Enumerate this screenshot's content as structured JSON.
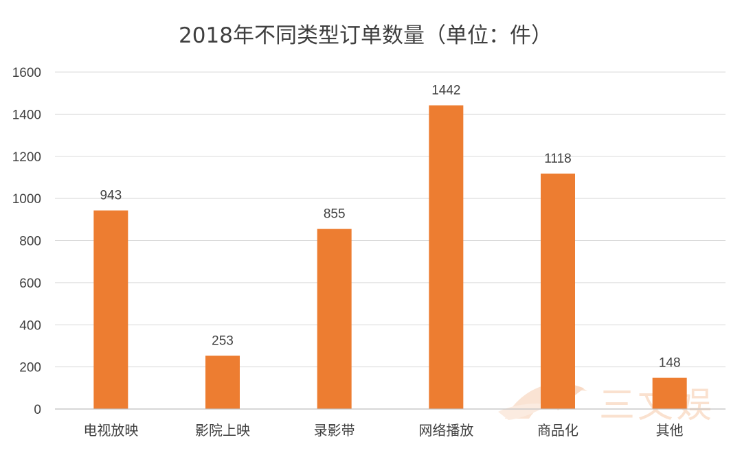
{
  "watermark": {
    "text": "三文娱"
  },
  "chart_data": {
    "type": "bar",
    "title": "2018年不同类型订单数量（单位：件）",
    "categories": [
      "电视放映",
      "影院上映",
      "录影带",
      "网络播放",
      "商品化",
      "其他"
    ],
    "values": [
      943,
      253,
      855,
      1442,
      1118,
      148
    ],
    "ylim": [
      0,
      1600
    ],
    "yticks": [
      0,
      200,
      400,
      600,
      800,
      1000,
      1200,
      1400,
      1600
    ],
    "grid": true,
    "data_labels": true,
    "colors": {
      "bar": "#ED7D31",
      "grid": "#D9D9D9",
      "text": "#404040",
      "title": "#3F3F3F",
      "watermark": "#F6C9A8"
    }
  }
}
